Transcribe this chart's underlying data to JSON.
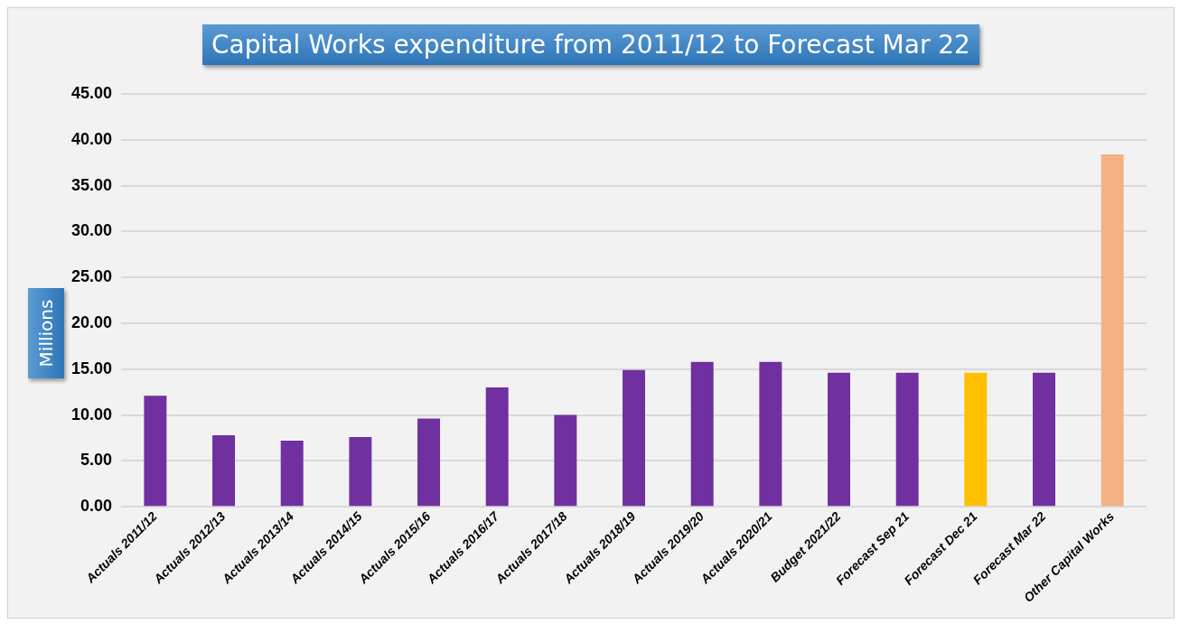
{
  "chart_data": {
    "type": "bar",
    "title": "Capital Works expenditure from 2011/12 to Forecast Mar 22",
    "ylabel": "Millions",
    "categories": [
      "Actuals 2011/12",
      "Actuals 2012/13",
      "Actuals 2013/14",
      "Actuals 2014/15",
      "Actuals 2015/16",
      "Actuals 2016/17",
      "Actuals 2017/18",
      "Actuals 2018/19",
      "Actuals 2019/20",
      "Actuals 2020/21",
      "Budget 2021/22",
      "Forecast Sep 21",
      "Forecast Dec 21",
      "Forecast Mar 22",
      "Other Capital Works"
    ],
    "values": [
      12.1,
      7.8,
      7.2,
      7.6,
      9.6,
      13.0,
      10.0,
      14.9,
      15.8,
      15.8,
      14.6,
      14.6,
      14.6,
      14.6,
      38.4
    ],
    "colors": [
      "#7030a0",
      "#7030a0",
      "#7030a0",
      "#7030a0",
      "#7030a0",
      "#7030a0",
      "#7030a0",
      "#7030a0",
      "#7030a0",
      "#7030a0",
      "#7030a0",
      "#7030a0",
      "#ffc000",
      "#7030a0",
      "#f4b183"
    ],
    "ylim": [
      0,
      45
    ],
    "yticks": [
      {
        "value": 0,
        "label": "0.00"
      },
      {
        "value": 5,
        "label": "5.00"
      },
      {
        "value": 10,
        "label": "10.00"
      },
      {
        "value": 15,
        "label": "15.00"
      },
      {
        "value": 20,
        "label": "20.00"
      },
      {
        "value": 25,
        "label": "25.00"
      },
      {
        "value": 30,
        "label": "30.00"
      },
      {
        "value": 35,
        "label": "35.00"
      },
      {
        "value": 40,
        "label": "40.00"
      },
      {
        "value": 45,
        "label": "45.00"
      }
    ],
    "grid": "y",
    "legend": false
  }
}
